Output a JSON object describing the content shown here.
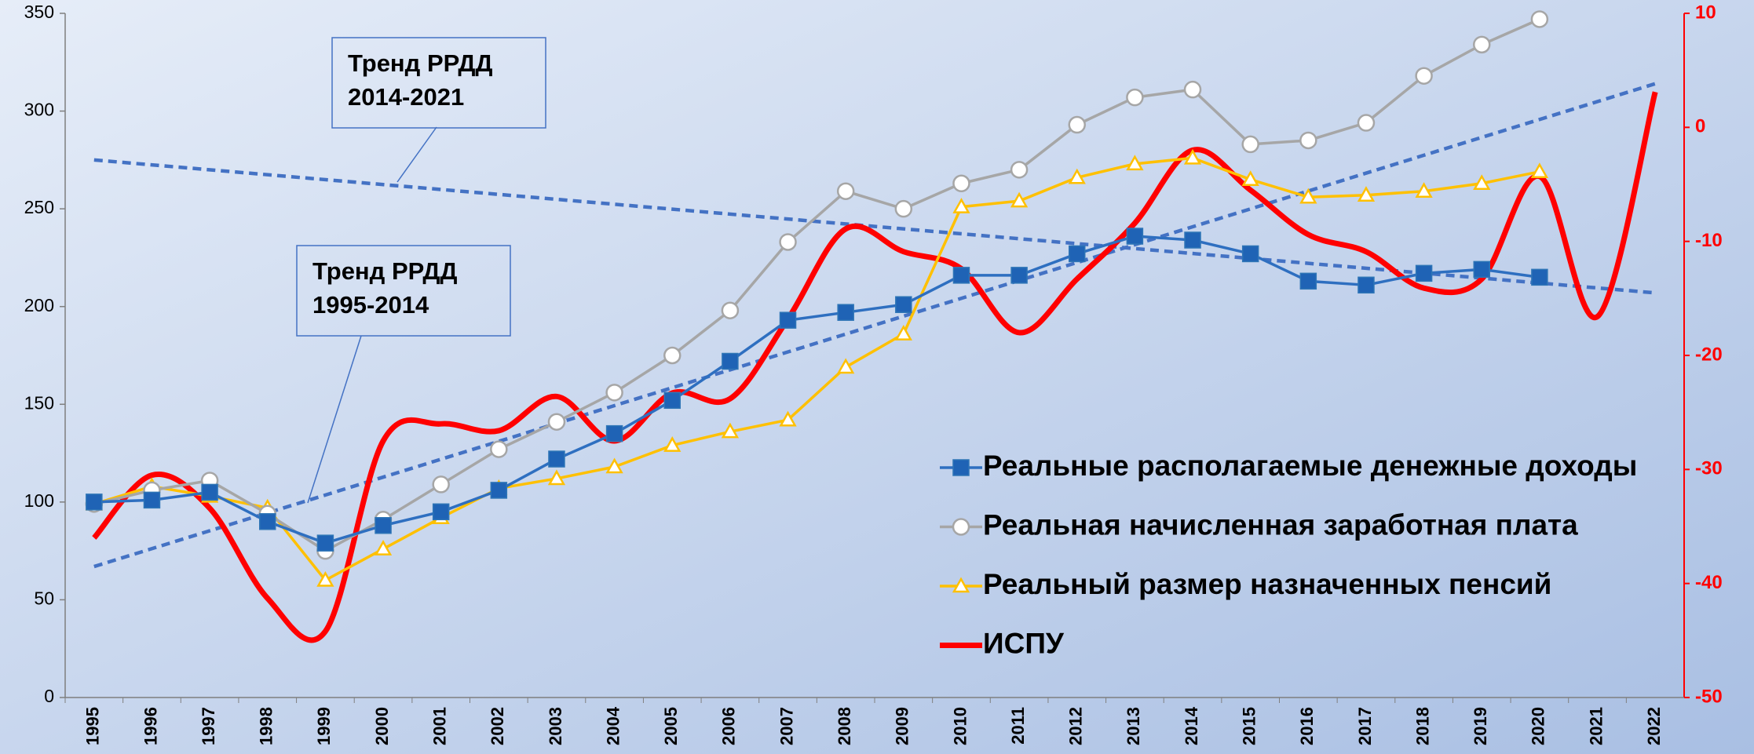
{
  "chart_data": {
    "type": "line",
    "categories": [
      "1995",
      "1996",
      "1997",
      "1998",
      "1999",
      "2000",
      "2001",
      "2002",
      "2003",
      "2004",
      "2005",
      "2006",
      "2007",
      "2008",
      "2009",
      "2010",
      "2011",
      "2012",
      "2013",
      "2014",
      "2015",
      "2016",
      "2017",
      "2018",
      "2019",
      "2020",
      "2021",
      "2022"
    ],
    "series": [
      {
        "name": "Реальные располагаемые денежные доходы",
        "color": "#2e6fc0",
        "marker": "square",
        "values": [
          100,
          101,
          105,
          90,
          79,
          88,
          95,
          106,
          122,
          135,
          152,
          172,
          193,
          197,
          201,
          216,
          216,
          227,
          236,
          234,
          227,
          213,
          211,
          217,
          219,
          215,
          null,
          null
        ]
      },
      {
        "name": "Реальная начисленная заработная плата",
        "color": "#a6a6a6",
        "marker": "circle",
        "values": [
          99,
          106,
          111,
          94,
          75,
          91,
          109,
          127,
          141,
          156,
          175,
          198,
          233,
          259,
          250,
          263,
          270,
          293,
          307,
          311,
          283,
          285,
          294,
          318,
          334,
          347,
          null,
          null
        ]
      },
      {
        "name": "Реальный размер назначенных пенсий",
        "color": "#ffc000",
        "marker": "triangle",
        "values": [
          99,
          108,
          103,
          97,
          60,
          76,
          92,
          107,
          112,
          118,
          129,
          136,
          142,
          169,
          186,
          251,
          254,
          266,
          273,
          276,
          265,
          256,
          257,
          259,
          263,
          269,
          null,
          null
        ]
      },
      {
        "name": "ИСПУ",
        "color": "#ff0000",
        "marker": "none",
        "smooth": true,
        "axis": "y2",
        "values": [
          -36,
          -30.5,
          -33.4,
          -41.3,
          -44.2,
          -27.5,
          -26,
          -26.6,
          -23.6,
          -27.5,
          -23.3,
          -23.8,
          -16.8,
          -8.9,
          -10.9,
          -12.4,
          -18,
          -13.3,
          -8.4,
          -2,
          -5.5,
          -9.4,
          -10.9,
          -14.1,
          -13.3,
          -4.3,
          -16.6,
          3.1
        ]
      }
    ],
    "trend_lines": [
      {
        "label": [
          "Тренд РРДД",
          "2014-2021"
        ],
        "color": "#4472c4",
        "values": [
          275,
          207
        ]
      },
      {
        "label": [
          "Тренд РРДД",
          "1995-2014"
        ],
        "color": "#4472c4",
        "values": [
          67,
          314
        ]
      }
    ],
    "ylim": [
      0,
      350
    ],
    "yticks": [
      0,
      50,
      100,
      150,
      200,
      250,
      300,
      350
    ],
    "y2lim": [
      -50,
      10
    ],
    "y2ticks": [
      -50,
      -40,
      -30,
      -20,
      -10,
      0,
      10
    ],
    "y2color": "#ff0000"
  }
}
